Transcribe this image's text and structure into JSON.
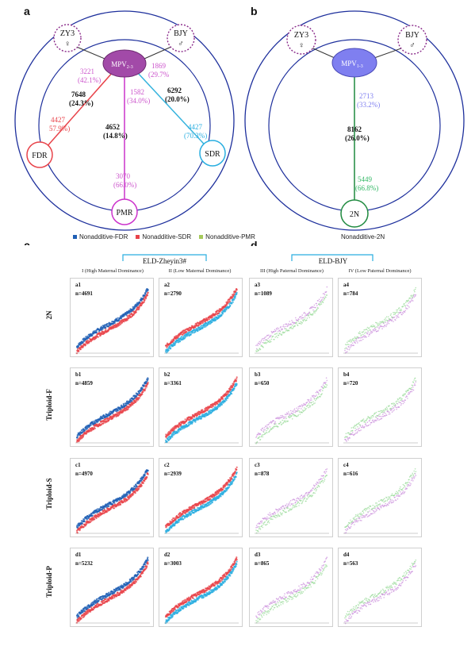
{
  "figure": {
    "panel_labels": {
      "a": "a",
      "b": "b",
      "c": "c",
      "d": "d"
    },
    "diagram_a": {
      "parent_left": {
        "name": "ZY3",
        "symbol": "♀"
      },
      "parent_right": {
        "name": "BJY",
        "symbol": "♂"
      },
      "center": {
        "label": "MPV",
        "sub": "2-3"
      },
      "nodes": {
        "fdr": "FDR",
        "sdr": "SDR",
        "pmr": "PMR"
      },
      "texts": {
        "t3221": "3221",
        "p3221": "(42.1%)",
        "t1869": "1869",
        "p1869": "(29.7%",
        "t7648": "7648",
        "p7648": "(24.3%)",
        "t1582": "1582",
        "p1582": "(34.0%)",
        "t6292": "6292",
        "p6292": "(20.0%)",
        "t4427a": "4427",
        "p4427a": "57.9%)",
        "t4652": "4652",
        "p4652": "(14.8%)",
        "t4427b": "4427",
        "p4427b": "(70.3%)",
        "t3070": "3070",
        "p3070": "(66.0%)"
      }
    },
    "diagram_b": {
      "parent_left": {
        "name": "ZY3",
        "symbol": "♀"
      },
      "parent_right": {
        "name": "BJY",
        "symbol": "♂"
      },
      "center": {
        "label": "MPV",
        "sub": "1-3"
      },
      "node": "2N",
      "texts": {
        "t2713": "2713",
        "p2713": "(33.2%)",
        "t8162": "8162",
        "p8162": "(26.0%)",
        "t5449": "5449",
        "p5449": "(66.8%)"
      }
    },
    "colors": {
      "fdr_blue": "#1f5fb4",
      "sdr_red": "#e8434a",
      "pmr_magenta": "#cc33cc",
      "green": "#55c865",
      "purple_node": "#a24aa8",
      "blue_node": "#7f7ff0",
      "sdr_cyan": "#29aee0",
      "outer": "#1d2f9c",
      "sdr_line": "#35b3dd"
    },
    "legend": [
      {
        "label": "Nonadditive-FDR",
        "color": "#1f5fb4"
      },
      {
        "label": "Nonadditive-SDR",
        "color": "#e8434a"
      },
      {
        "label": "Nonadditive-PMR",
        "color": "#a5c95a"
      }
    ],
    "legend_d": "Nonadditive-2N",
    "groups": {
      "left": "ELD-Zheyin3#",
      "right": "ELD-BJY"
    },
    "column_headers": [
      "I (High Maternal Dominance)",
      "II (Low  Maternal Dominance)",
      "III (High Paternal Dominance)",
      "IV (Low Paternal Dominance)"
    ],
    "row_headers": [
      "2N",
      "Triploid-F",
      "Triploid-S",
      "Triploid-P"
    ],
    "panels": [
      [
        {
          "id": "a1",
          "n": "n=4691"
        },
        {
          "id": "a2",
          "n": "n=2790"
        },
        {
          "id": "a3",
          "n": "n=1089"
        },
        {
          "id": "a4",
          "n": "n=784"
        }
      ],
      [
        {
          "id": "b1",
          "n": "n=4859"
        },
        {
          "id": "b2",
          "n": "n=3361"
        },
        {
          "id": "b3",
          "n": "n=650"
        },
        {
          "id": "b4",
          "n": "n=720"
        }
      ],
      [
        {
          "id": "c1",
          "n": "n=4970"
        },
        {
          "id": "c2",
          "n": "n=2939"
        },
        {
          "id": "c3",
          "n": "n=878"
        },
        {
          "id": "c4",
          "n": "n=616"
        }
      ],
      [
        {
          "id": "d1",
          "n": "n=5232"
        },
        {
          "id": "d2",
          "n": "n=3003"
        },
        {
          "id": "d3",
          "n": "n=865"
        },
        {
          "id": "d4",
          "n": "n=563"
        }
      ]
    ]
  }
}
